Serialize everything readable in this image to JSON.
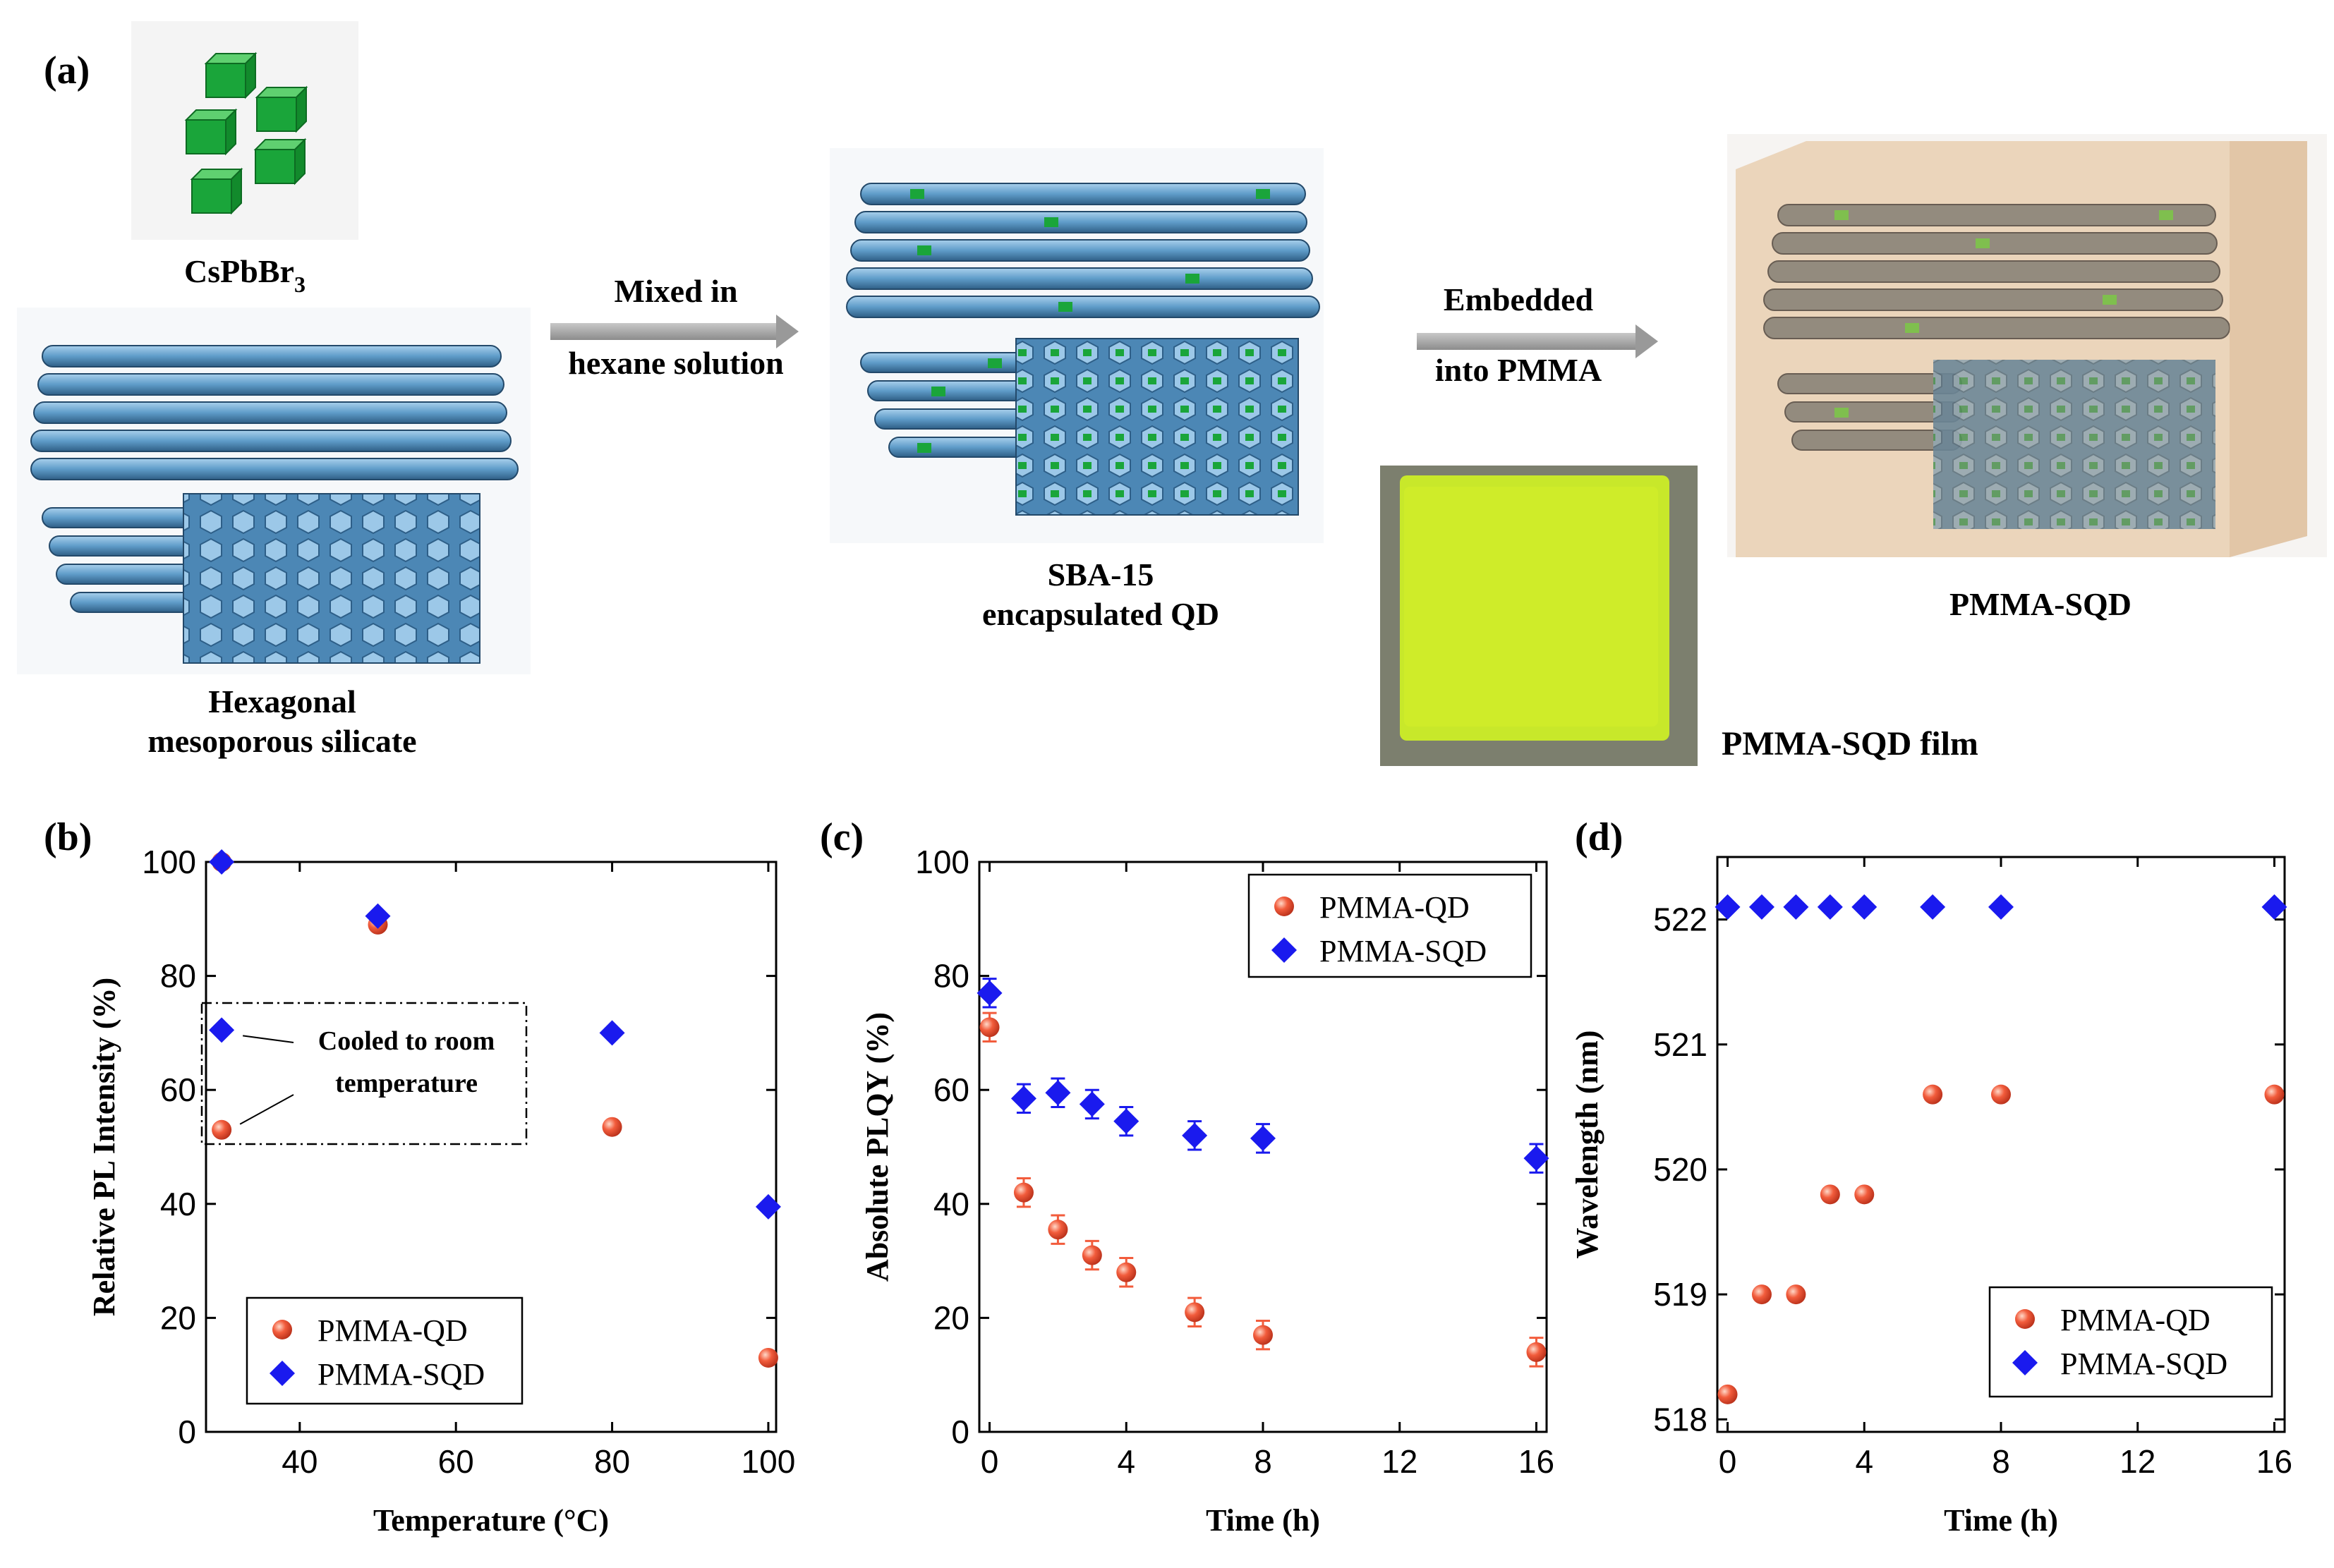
{
  "panel_a": {
    "label": "(a)",
    "csbr_text": "CsPbBr",
    "csbr_sub": "3",
    "silicate_line1": "Hexagonal",
    "silicate_line2": "mesoporous silicate",
    "arrow1_line1": "Mixed in",
    "arrow1_line2": "hexane solution",
    "sba_line1": "SBA-15",
    "sba_line2": "encapsulated QD",
    "arrow2_line1": "Embedded",
    "arrow2_line2": "into PMMA",
    "film_label": "PMMA-SQD film",
    "pmma_sqd_label": "PMMA-SQD"
  },
  "colors": {
    "qd": "#f25c3c",
    "sqd": "#1a1aee",
    "green_cube": "#1aa53a",
    "rod": "#6aa8d4",
    "film": "#c8e82a",
    "box": "#e8c8a8"
  },
  "chart_data": [
    {
      "type": "scatter",
      "panel": "(b)",
      "xlabel": "Temperature (°C)",
      "ylabel": "Relative PL Intensity (%)",
      "xlim": [
        28,
        101
      ],
      "ylim": [
        0,
        100
      ],
      "xticks": [
        40,
        60,
        80,
        100
      ],
      "yticks": [
        0,
        20,
        40,
        60,
        80,
        100
      ],
      "annotation": [
        "Cooled to room",
        "temperature"
      ],
      "series": [
        {
          "name": "PMMA-QD",
          "x": [
            30,
            50,
            80,
            100,
            30
          ],
          "y": [
            100,
            89,
            53.5,
            13,
            53
          ]
        },
        {
          "name": "PMMA-SQD",
          "x": [
            30,
            50,
            80,
            100,
            30
          ],
          "y": [
            100,
            90.5,
            70,
            39.5,
            70.5
          ]
        }
      ]
    },
    {
      "type": "scatter",
      "panel": "(c)",
      "xlabel": "Time (h)",
      "ylabel": "Absolute PLQY (%)",
      "xlim": [
        -0.3,
        16.3
      ],
      "ylim": [
        0,
        100
      ],
      "xticks": [
        0,
        4,
        8,
        12,
        16
      ],
      "yticks": [
        0,
        20,
        40,
        60,
        80,
        100
      ],
      "series": [
        {
          "name": "PMMA-QD",
          "x": [
            0,
            1,
            2,
            3,
            4,
            6,
            8,
            16
          ],
          "y": [
            71,
            42,
            35.5,
            31,
            28,
            21,
            17,
            14
          ],
          "err": [
            2.5,
            2.5,
            2.5,
            2.5,
            2.5,
            2.5,
            2.5,
            2.5
          ]
        },
        {
          "name": "PMMA-SQD",
          "x": [
            0,
            1,
            2,
            3,
            4,
            6,
            8,
            16
          ],
          "y": [
            77,
            58.5,
            59.5,
            57.5,
            54.5,
            52,
            51.5,
            48
          ],
          "err": [
            2.5,
            2.5,
            2.5,
            2.5,
            2.5,
            2.5,
            2.5,
            2.5
          ]
        }
      ]
    },
    {
      "type": "scatter",
      "panel": "(d)",
      "xlabel": "Time (h)",
      "ylabel": "Wavelength (nm)",
      "xlim": [
        -0.3,
        16.3
      ],
      "ylim": [
        517.9,
        522.5
      ],
      "xticks": [
        0,
        4,
        8,
        12,
        16
      ],
      "yticks": [
        518,
        519,
        520,
        521,
        522
      ],
      "series": [
        {
          "name": "PMMA-QD",
          "x": [
            0,
            1,
            2,
            3,
            4,
            6,
            8,
            16
          ],
          "y": [
            518.2,
            519,
            519,
            519.8,
            519.8,
            520.6,
            520.6,
            520.6
          ]
        },
        {
          "name": "PMMA-SQD",
          "x": [
            0,
            1,
            2,
            3,
            4,
            6,
            8,
            16
          ],
          "y": [
            522.1,
            522.1,
            522.1,
            522.1,
            522.1,
            522.1,
            522.1,
            522.1
          ]
        }
      ]
    }
  ]
}
